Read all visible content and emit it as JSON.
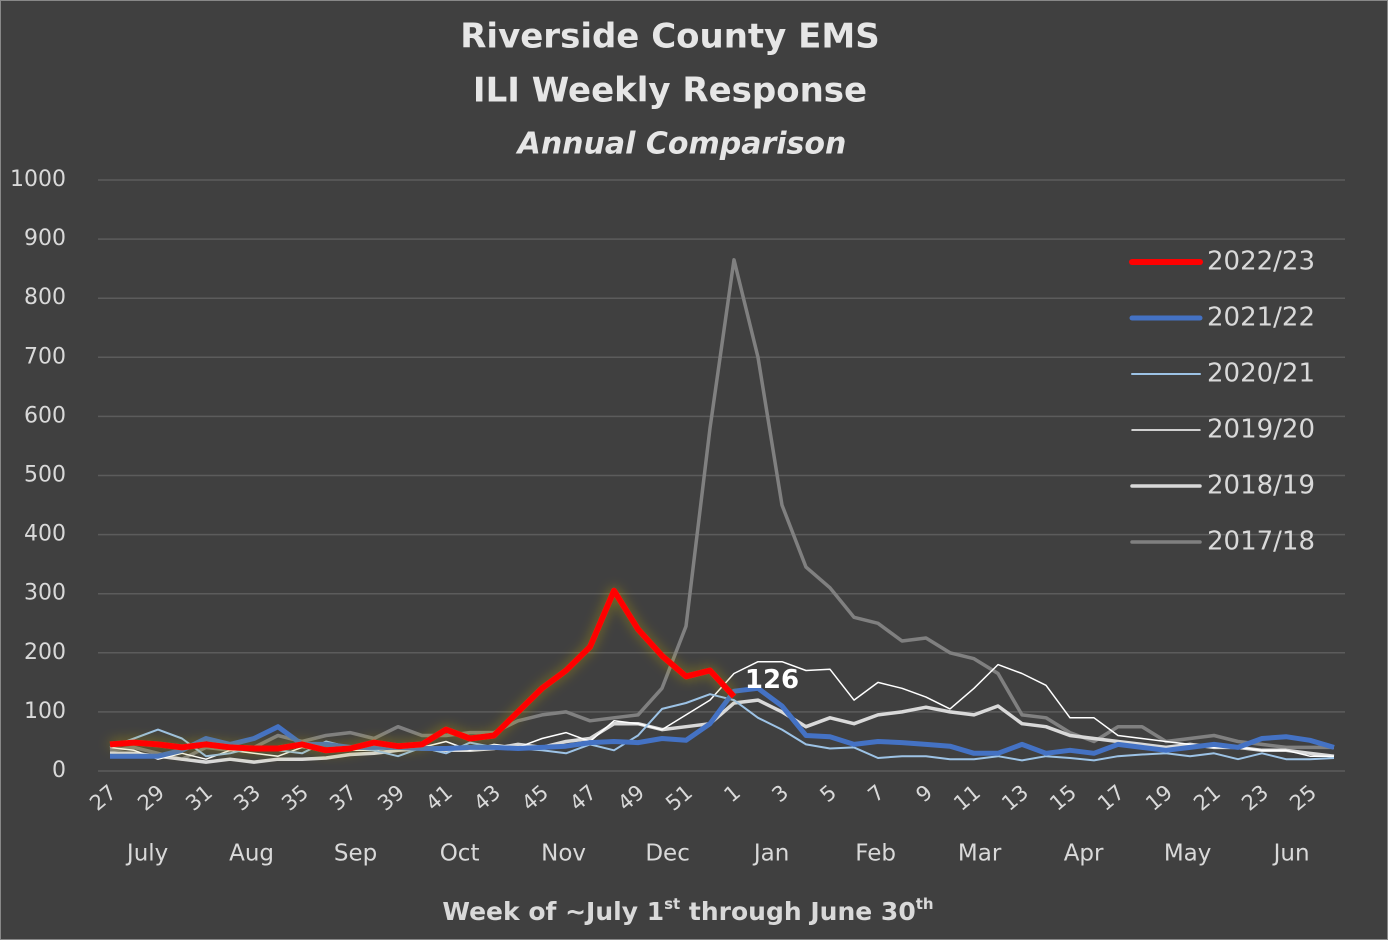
{
  "chart_data": {
    "type": "line",
    "title": [
      "Riverside County EMS",
      "ILI Weekly Response"
    ],
    "subtitle": "Annual Comparison",
    "x_label": [
      "Week of ~July 1",
      "st",
      " through June 30",
      "th"
    ],
    "categories": [
      "27",
      null,
      "29",
      null,
      "31",
      null,
      "33",
      null,
      "35",
      null,
      "37",
      null,
      "39",
      null,
      "41",
      null,
      "43",
      null,
      "45",
      null,
      "47",
      null,
      "49",
      null,
      "51",
      null,
      "1",
      null,
      "3",
      null,
      "5",
      null,
      "7",
      null,
      "9",
      null,
      "11",
      null,
      "13",
      null,
      "15",
      null,
      "17",
      null,
      "19",
      null,
      "21",
      null,
      "23",
      null,
      "25",
      null
    ],
    "months": [
      "July",
      "Aug",
      "Sep",
      "Oct",
      "Nov",
      "Dec",
      "Jan",
      "Feb",
      "Mar",
      "Apr",
      "May",
      "Jun"
    ],
    "ylim": [
      0,
      1000
    ],
    "yticks": [
      0,
      100,
      200,
      300,
      400,
      500,
      600,
      700,
      800,
      900,
      1000
    ],
    "grid": true,
    "legend": "right",
    "series": [
      {
        "name": "2022/23",
        "color": "#ff0000",
        "width": 6,
        "values": [
          45,
          48,
          45,
          40,
          45,
          40,
          38,
          38,
          45,
          35,
          38,
          48,
          42,
          45,
          70,
          55,
          60,
          100,
          140,
          170,
          210,
          305,
          240,
          195,
          160,
          170,
          126,
          null,
          null,
          null,
          null,
          null,
          null,
          null,
          null,
          null,
          null,
          null,
          null,
          null,
          null,
          null,
          null,
          null,
          null,
          null,
          null,
          null,
          null,
          null,
          null,
          null
        ],
        "value_labels": [
          null,
          null,
          null,
          null,
          null,
          null,
          null,
          null,
          null,
          null,
          null,
          null,
          null,
          null,
          null,
          null,
          null,
          null,
          null,
          null,
          null,
          null,
          null,
          null,
          null,
          null,
          "126",
          null,
          null,
          null,
          null,
          null,
          null,
          null,
          null,
          null,
          null,
          null,
          null,
          null,
          null,
          null,
          null,
          null,
          null,
          null,
          null,
          null,
          null,
          null,
          null,
          null
        ]
      },
      {
        "name": "2021/22",
        "color": "#4472c4",
        "width": 5,
        "values": [
          25,
          25,
          25,
          35,
          55,
          45,
          55,
          75,
          45,
          45,
          40,
          40,
          40,
          38,
          38,
          40,
          40,
          38,
          40,
          42,
          48,
          50,
          48,
          55,
          52,
          80,
          135,
          140,
          110,
          60,
          58,
          45,
          50,
          48,
          45,
          42,
          30,
          30,
          45,
          30,
          35,
          30,
          45,
          40,
          35,
          40,
          45,
          40,
          55,
          58,
          52,
          40
        ]
      },
      {
        "name": "2020/21",
        "color": "#9dc3e6",
        "width": 2,
        "values": [
          40,
          55,
          70,
          55,
          25,
          30,
          40,
          35,
          30,
          50,
          40,
          35,
          25,
          40,
          30,
          48,
          40,
          38,
          35,
          30,
          45,
          35,
          60,
          105,
          115,
          130,
          120,
          90,
          70,
          45,
          38,
          40,
          22,
          25,
          25,
          20,
          20,
          25,
          18,
          25,
          22,
          18,
          25,
          28,
          30,
          25,
          30,
          20,
          30,
          20,
          20,
          22
        ]
      },
      {
        "name": "2019/20",
        "color": "#ffffff",
        "width": 1.5,
        "values": [
          40,
          35,
          20,
          30,
          20,
          35,
          30,
          25,
          40,
          35,
          35,
          35,
          40,
          40,
          50,
          35,
          45,
          40,
          55,
          65,
          50,
          85,
          80,
          70,
          95,
          120,
          165,
          185,
          185,
          170,
          172,
          120,
          150,
          140,
          125,
          105,
          140,
          180,
          165,
          145,
          90,
          90,
          60,
          55,
          50,
          45,
          40,
          40,
          35,
          35,
          25,
          25
        ]
      },
      {
        "name": "2018/19",
        "color": "#d9d9d9",
        "width": 3.5,
        "values": [
          30,
          30,
          25,
          20,
          15,
          20,
          15,
          20,
          20,
          22,
          28,
          30,
          35,
          38,
          35,
          35,
          38,
          45,
          40,
          50,
          55,
          80,
          80,
          70,
          75,
          80,
          115,
          120,
          100,
          75,
          90,
          80,
          95,
          100,
          108,
          100,
          95,
          110,
          80,
          75,
          60,
          55,
          50,
          45,
          40,
          45,
          40,
          40,
          35,
          35,
          30,
          25
        ]
      },
      {
        "name": "2017/18",
        "color": "#808080",
        "width": 3.5,
        "values": [
          35,
          40,
          30,
          20,
          40,
          35,
          40,
          60,
          50,
          60,
          65,
          55,
          75,
          60,
          60,
          65,
          65,
          85,
          95,
          100,
          85,
          90,
          95,
          140,
          245,
          580,
          865,
          700,
          450,
          345,
          310,
          260,
          250,
          220,
          225,
          200,
          190,
          165,
          95,
          90,
          65,
          50,
          75,
          75,
          50,
          55,
          60,
          50,
          45,
          40,
          40,
          40
        ]
      }
    ]
  }
}
